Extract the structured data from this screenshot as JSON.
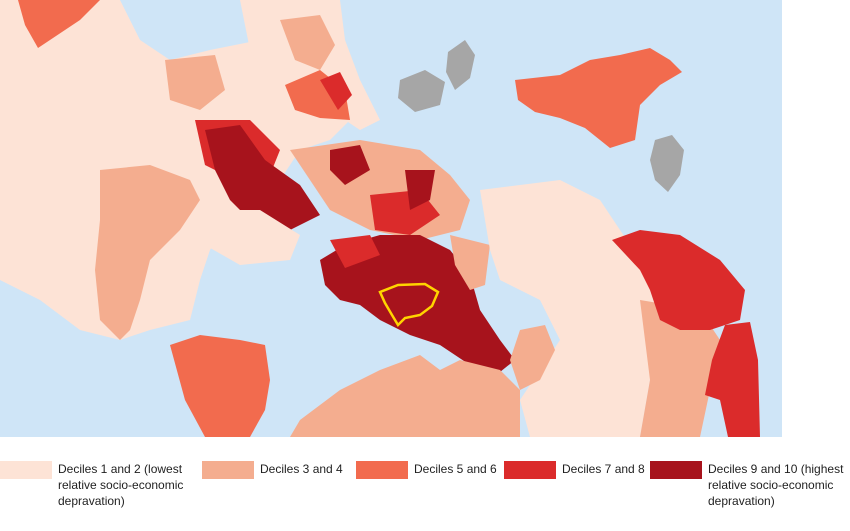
{
  "map": {
    "sea_color": "#cfe5f7",
    "no_data_color": "#a6a6a6",
    "highlight_outline_color": "#ffd400"
  },
  "legend": [
    {
      "label": "Deciles 1 and 2 (lowest relative socio-economic depravation)",
      "color": "#fde3d6"
    },
    {
      "label": "Deciles 3 and 4",
      "color": "#f4ad8f"
    },
    {
      "label": "Deciles 5 and 6",
      "color": "#f26b4e"
    },
    {
      "label": "Deciles 7 and 8",
      "color": "#db2b2b"
    },
    {
      "label": "Deciles 9 and 10 (highest relative socio-economic depravation)",
      "color": "#a7131c"
    }
  ]
}
